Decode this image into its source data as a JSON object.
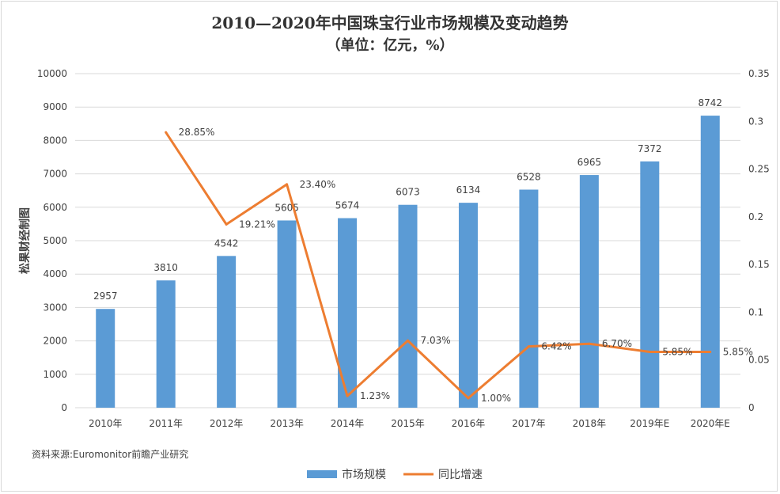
{
  "chart_data": {
    "type": "bar+line",
    "title": "2010—2020年中国珠宝行业市场规模及变动趋势",
    "subtitle": "（单位：亿元，%）",
    "ylabel": "",
    "watermark": "松果财经制图",
    "categories": [
      "2010年",
      "2011年",
      "2012年",
      "2013年",
      "2014年",
      "2015年",
      "2016年",
      "2017年",
      "2018年",
      "2019年E",
      "2020年E"
    ],
    "series": [
      {
        "name": "市场规模",
        "type": "bar",
        "axis": "left",
        "color": "#5b9bd5",
        "values": [
          2957,
          3810,
          4542,
          5605,
          5674,
          6073,
          6134,
          6528,
          6965,
          7372,
          8742
        ],
        "labels": [
          "2957",
          "3810",
          "4542",
          "5605",
          "5674",
          "6073",
          "6134",
          "6528",
          "6965",
          "7372",
          "8742"
        ]
      },
      {
        "name": "同比增速",
        "type": "line",
        "axis": "right",
        "color": "#ed7d31",
        "values": [
          null,
          0.2885,
          0.1921,
          0.234,
          0.0123,
          0.0703,
          0.01,
          0.0642,
          0.067,
          0.0585,
          0.0585
        ],
        "labels": [
          null,
          "28.85%",
          "19.21%",
          "23.40%",
          "1.23%",
          "7.03%",
          "1.00%",
          "6.42%",
          "6.70%",
          "5.85%",
          "5.85%"
        ]
      }
    ],
    "y_left": {
      "min": 0,
      "max": 10000,
      "ticks": [
        "0",
        "1000",
        "2000",
        "3000",
        "4000",
        "5000",
        "6000",
        "7000",
        "8000",
        "9000",
        "10000"
      ]
    },
    "y_right": {
      "min": 0,
      "max": 0.35,
      "ticks": [
        "0",
        "0.05",
        "0.1",
        "0.15",
        "0.2",
        "0.25",
        "0.3",
        "0.35"
      ]
    },
    "grid": true,
    "legend": {
      "position": "bottom",
      "items": [
        "市场规模",
        "同比增速"
      ]
    },
    "source": "资料来源:Euromonitor前瞻产业研究"
  }
}
